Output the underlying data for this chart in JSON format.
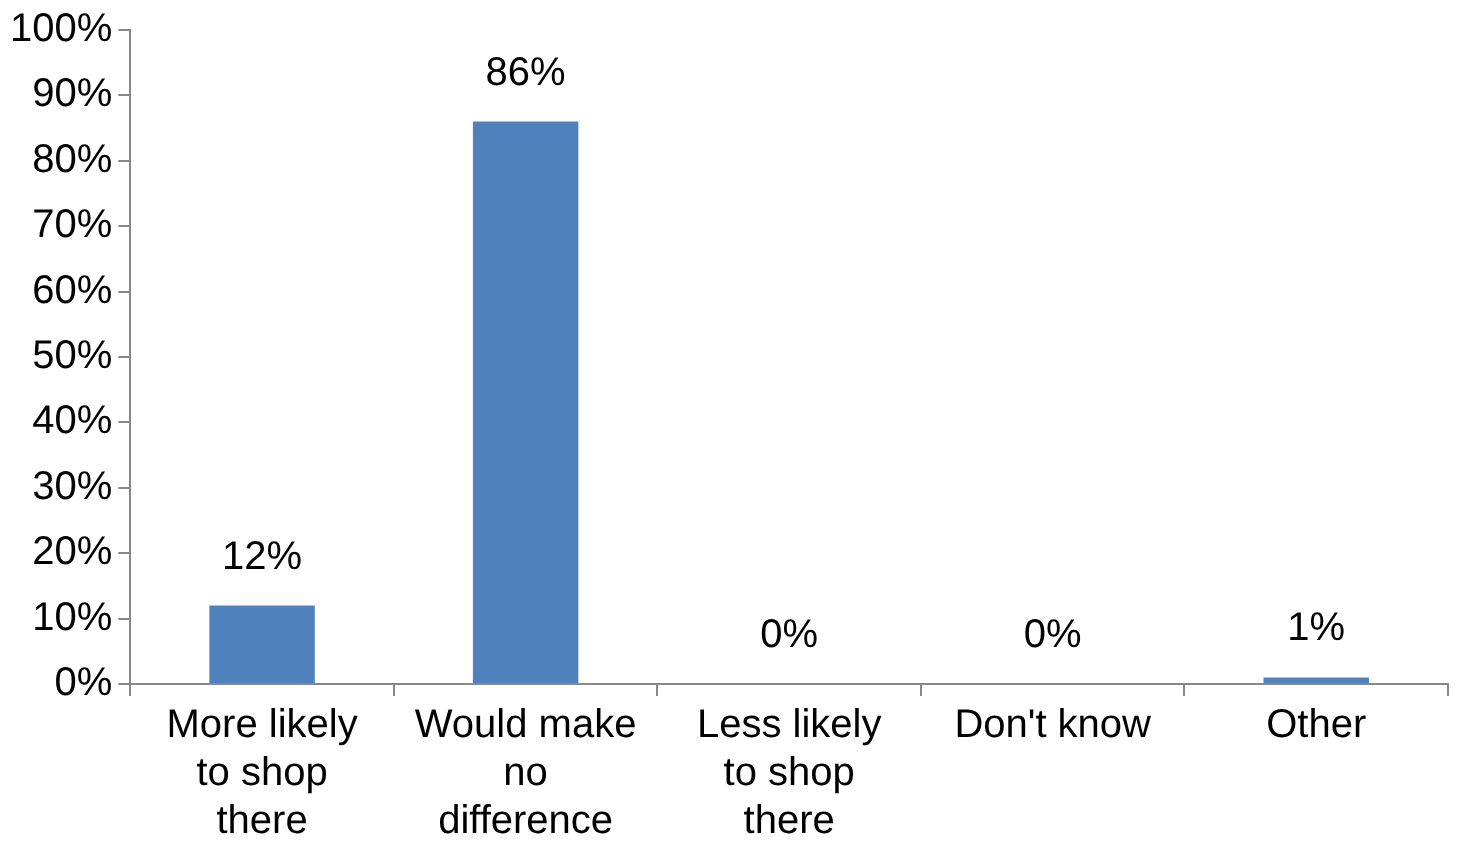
{
  "chart_data": {
    "type": "bar",
    "categories": [
      "More likely to shop there",
      "Would make no difference",
      "Less likely to shop there",
      "Don't know",
      "Other"
    ],
    "values": [
      12,
      86,
      0,
      0,
      1
    ],
    "value_labels": [
      "12%",
      "86%",
      "0%",
      "0%",
      "1%"
    ],
    "color": "#4f81bd",
    "ylim": [
      0,
      100
    ],
    "yticks": [
      {
        "value": 0,
        "label": "0%"
      },
      {
        "value": 10,
        "label": "10%"
      },
      {
        "value": 20,
        "label": "20%"
      },
      {
        "value": 30,
        "label": "30%"
      },
      {
        "value": 40,
        "label": "40%"
      },
      {
        "value": 50,
        "label": "50%"
      },
      {
        "value": 60,
        "label": "60%"
      },
      {
        "value": 70,
        "label": "70%"
      },
      {
        "value": 80,
        "label": "80%"
      },
      {
        "value": 90,
        "label": "90%"
      },
      {
        "value": 100,
        "label": "100%"
      }
    ],
    "grid": false,
    "legend": false
  }
}
